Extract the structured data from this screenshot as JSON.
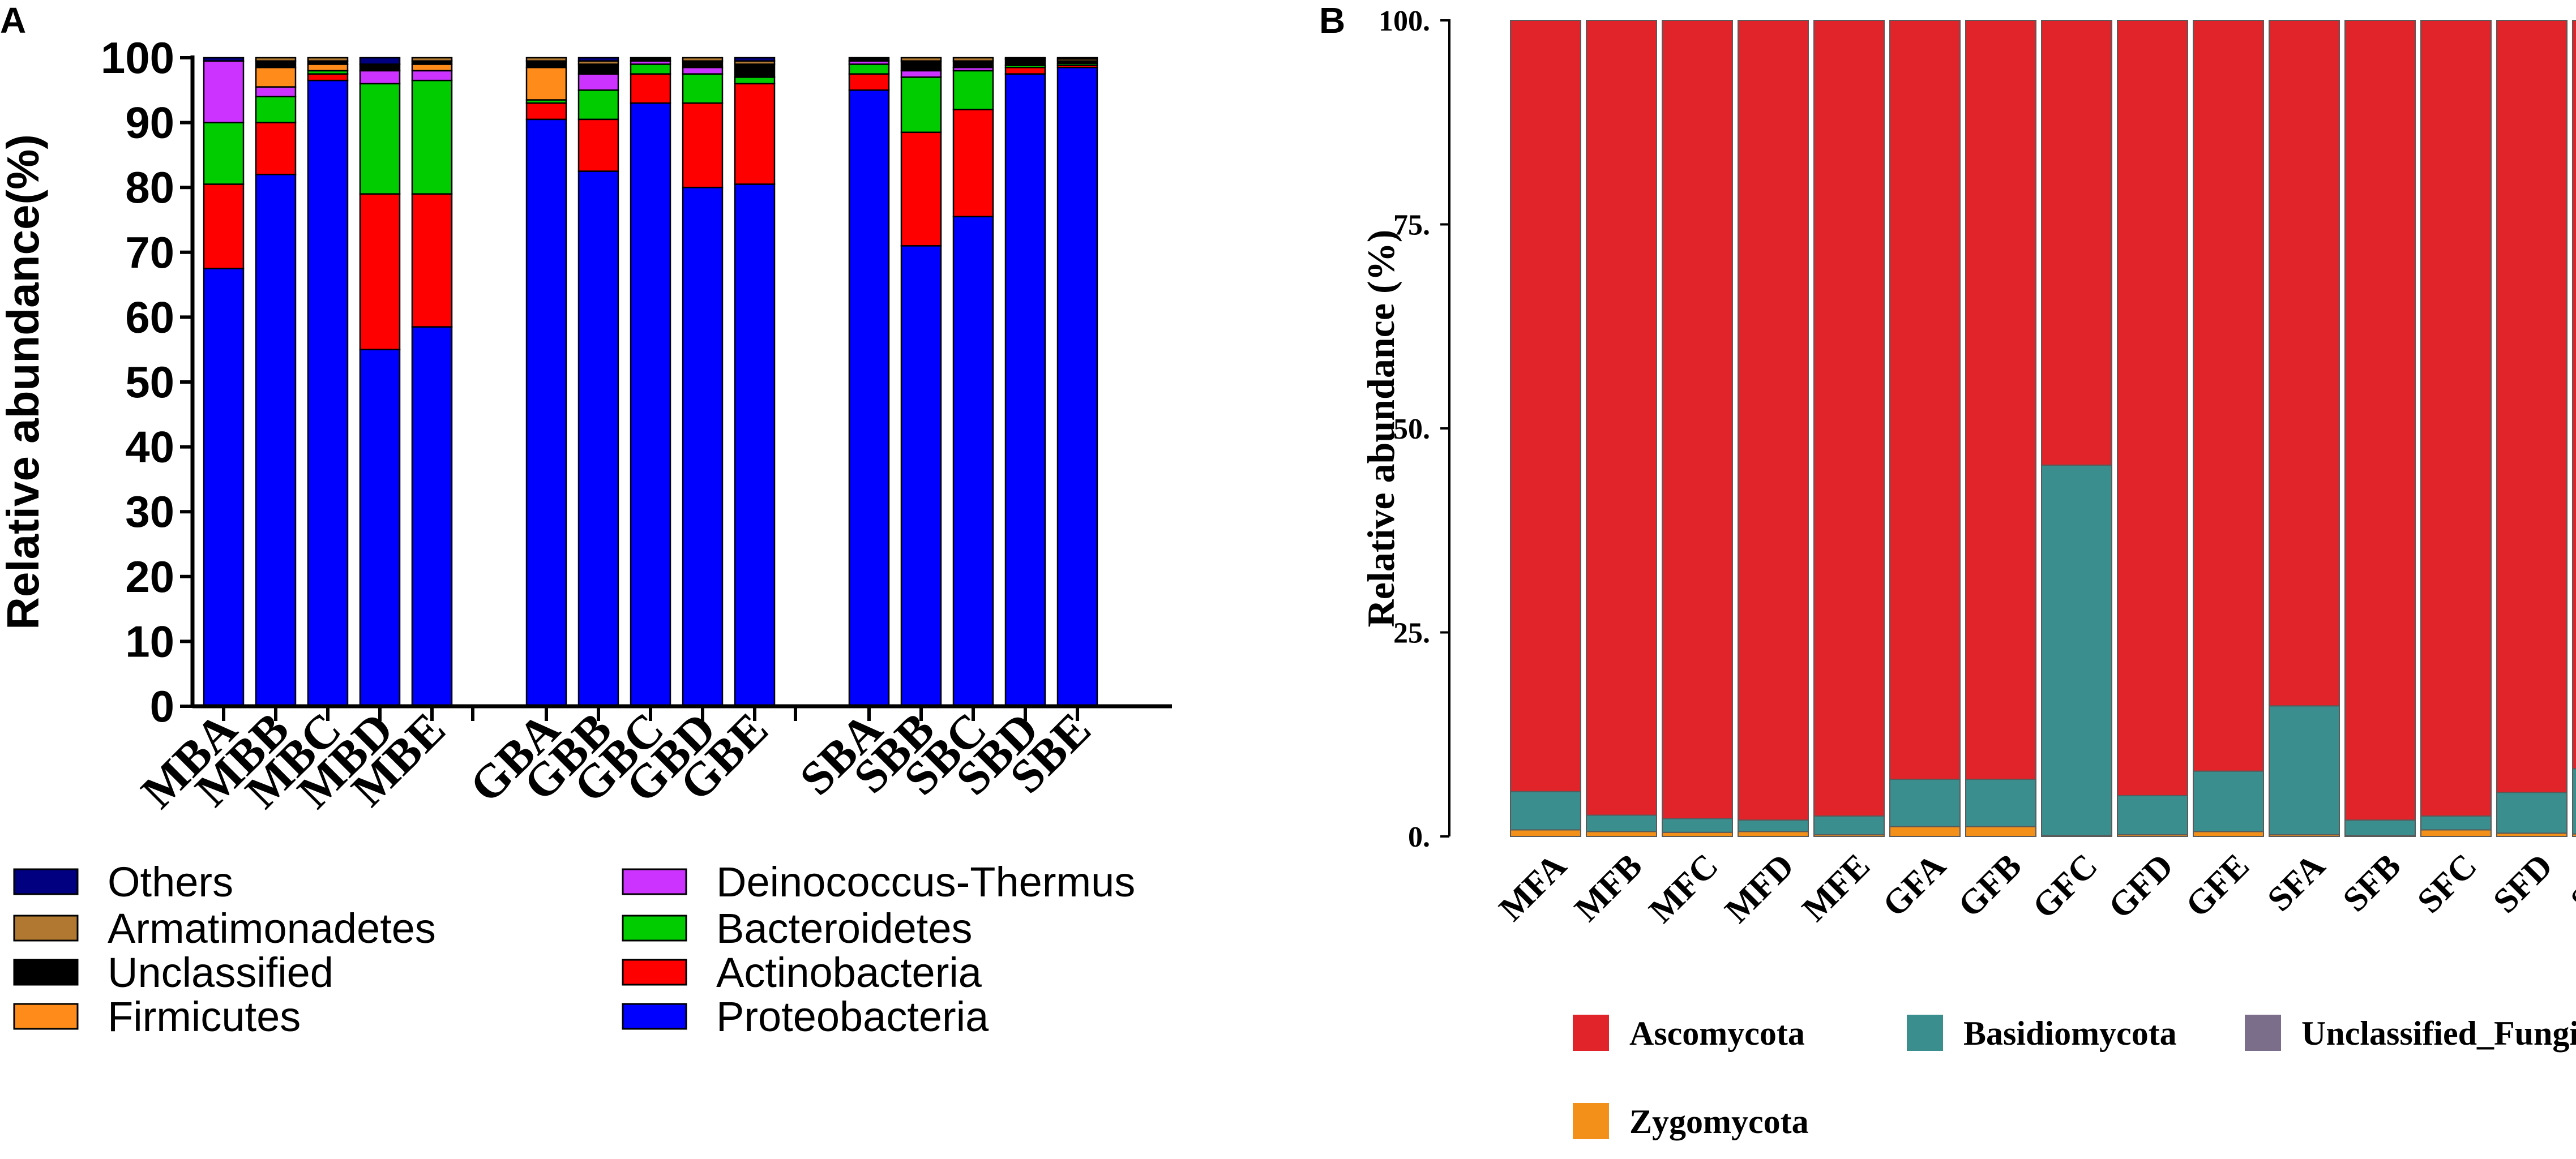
{
  "chart_data": [
    {
      "panel": "A",
      "type": "bar",
      "stacked": true,
      "title": "",
      "xlabel": "",
      "ylabel": "Relative abundance(%)",
      "ylim": [
        0,
        100
      ],
      "yticks": [
        0,
        10,
        20,
        30,
        40,
        50,
        60,
        70,
        80,
        90,
        100
      ],
      "categories": [
        "MBA",
        "MBB",
        "MBC",
        "MBD",
        "MBE",
        "GBA",
        "GBB",
        "GBC",
        "GBD",
        "GBE",
        "SBA",
        "SBB",
        "SBC",
        "SBD",
        "SBE"
      ],
      "groups": [
        [
          "MBA",
          "MBB",
          "MBC",
          "MBD",
          "MBE"
        ],
        [
          "GBA",
          "GBB",
          "GBC",
          "GBD",
          "GBE"
        ],
        [
          "SBA",
          "SBB",
          "SBC",
          "SBD",
          "SBE"
        ]
      ],
      "series": [
        {
          "name": "Proteobacteria",
          "color": "#0000ff",
          "values": [
            67.5,
            82,
            96.5,
            55,
            58.5,
            90.5,
            82.5,
            93,
            80,
            80.5,
            95,
            71,
            75.5,
            97.5,
            98.5
          ]
        },
        {
          "name": "Actinobacteria",
          "color": "#ff0000",
          "values": [
            13,
            8,
            1,
            24,
            20.5,
            2.5,
            8,
            4.5,
            13,
            15.5,
            2.5,
            17.5,
            16.5,
            1,
            0.3
          ]
        },
        {
          "name": "Bacteroidetes",
          "color": "#00cc00",
          "values": [
            9.5,
            4,
            0.5,
            17,
            17.5,
            0.5,
            4.5,
            1.5,
            4.5,
            1,
            1.5,
            8.5,
            6,
            0.3,
            0.3
          ]
        },
        {
          "name": "Deinococcus-Thermus",
          "color": "#cc33ff",
          "values": [
            9.5,
            1.5,
            0,
            2,
            1.5,
            0,
            2.5,
            0.5,
            1,
            0,
            0.5,
            1,
            0.5,
            0,
            0
          ]
        },
        {
          "name": "Firmicutes",
          "color": "#ff8c1a",
          "values": [
            0,
            3,
            1,
            0,
            1,
            5,
            0,
            0,
            0,
            0,
            0,
            0,
            0,
            0,
            0
          ]
        },
        {
          "name": "Unclassified",
          "color": "#000000",
          "values": [
            0,
            1,
            0.5,
            1,
            0.5,
            1,
            1.5,
            0.5,
            1,
            2,
            0.5,
            1.5,
            1,
            1,
            0.4
          ]
        },
        {
          "name": "Armatimonadetes",
          "color": "#b07830",
          "values": [
            0,
            0.5,
            0.5,
            0,
            0.5,
            0.5,
            0.5,
            0,
            0.5,
            0.5,
            0,
            0.5,
            0.5,
            0.2,
            0.3
          ]
        },
        {
          "name": "Others",
          "color": "#000080",
          "values": [
            0.5,
            0,
            0,
            1,
            0,
            0,
            0.5,
            0,
            0,
            0.5,
            0,
            0,
            0,
            0,
            0.2
          ]
        }
      ],
      "legend_columns": [
        [
          "Others",
          "Armatimonadetes",
          "Unclassified",
          "Firmicutes"
        ],
        [
          "Deinococcus-Thermus",
          "Bacteroidetes",
          "Actinobacteria",
          "Proteobacteria"
        ]
      ],
      "legend_position": "bottom"
    },
    {
      "panel": "B",
      "type": "bar",
      "stacked": true,
      "title": "",
      "xlabel": "",
      "ylabel": "Relative abundance (%)",
      "ylim": [
        0,
        100
      ],
      "yticks": [
        0,
        25,
        50,
        75,
        100
      ],
      "categories": [
        "MFA",
        "MFB",
        "MFC",
        "MFD",
        "MFE",
        "GFA",
        "GFB",
        "GFC",
        "GFD",
        "GFE",
        "SFA",
        "SFB",
        "SFC",
        "SFD",
        "SFE"
      ],
      "series": [
        {
          "name": "Zygomycota",
          "color": "#f39019",
          "values": [
            0.8,
            0.6,
            0.5,
            0.6,
            0.2,
            1.2,
            1.2,
            0.1,
            0.2,
            0.6,
            0.2,
            0.1,
            0.8,
            0.4,
            0.3
          ]
        },
        {
          "name": "Basidiomycota",
          "color": "#3a8e8e",
          "values": [
            4.7,
            2,
            1.7,
            1.4,
            2.3,
            5.8,
            5.8,
            45.4,
            4.8,
            7.4,
            15.8,
            1.9,
            1.7,
            5,
            8
          ]
        },
        {
          "name": "Unclassified_Fungi",
          "color": "#7b6e8a",
          "values": [
            0,
            0,
            0,
            0,
            0,
            0,
            0,
            0,
            0,
            0,
            0,
            0,
            0,
            0,
            0
          ]
        },
        {
          "name": "Ascomycota",
          "color": "#e0242a",
          "values": [
            94.5,
            97.4,
            97.8,
            98,
            97.5,
            93,
            93,
            54.5,
            95,
            92,
            84,
            98,
            97.5,
            94.6,
            91.7
          ]
        }
      ],
      "legend_order": [
        "Ascomycota",
        "Basidiomycota",
        "Unclassified_Fungi",
        "Zygomycota"
      ],
      "legend_position": "bottom"
    }
  ]
}
